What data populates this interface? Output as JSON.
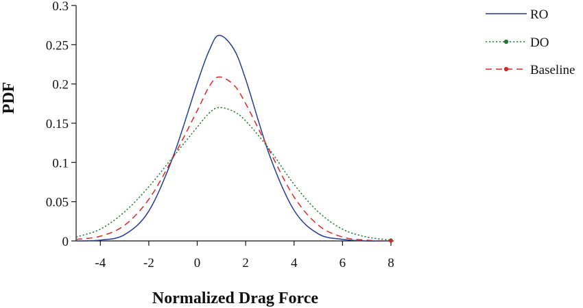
{
  "chart_data": {
    "type": "line",
    "xlabel": "Normalized Drag Force",
    "ylabel": "PDF",
    "xlim": [
      -5,
      8
    ],
    "ylim": [
      0,
      0.3
    ],
    "xticks": [
      -4,
      -2,
      0,
      2,
      4,
      6,
      8
    ],
    "xtick_labels": [
      "-4",
      "-2",
      "0",
      "2",
      "4",
      "6",
      "8"
    ],
    "yticks": [
      0,
      0.05,
      0.1,
      0.15,
      0.2,
      0.25,
      0.3
    ],
    "ytick_labels": [
      "0",
      "0.05",
      "0.1",
      "0.15",
      "0.2",
      "0.25",
      "0.3"
    ],
    "grid": false,
    "legend_position": "top-right outside",
    "series": [
      {
        "name": "RO",
        "color": "#1f3a93",
        "style": "solid",
        "x": [
          -5,
          -4,
          -3,
          -2,
          -1,
          0,
          0.5,
          0.9,
          1.5,
          2,
          3,
          4,
          5,
          6,
          7,
          8
        ],
        "y": [
          0.0,
          0.001,
          0.008,
          0.038,
          0.107,
          0.201,
          0.243,
          0.262,
          0.245,
          0.206,
          0.108,
          0.039,
          0.009,
          0.002,
          0.0,
          0.0
        ]
      },
      {
        "name": "DO",
        "color": "#1e7a32",
        "style": "dotted",
        "x": [
          -5,
          -4,
          -3,
          -2,
          -1,
          0,
          0.5,
          0.9,
          1.5,
          2,
          3,
          4,
          5,
          6,
          7,
          8
        ],
        "y": [
          0.005,
          0.015,
          0.037,
          0.069,
          0.107,
          0.145,
          0.163,
          0.17,
          0.165,
          0.153,
          0.116,
          0.072,
          0.037,
          0.015,
          0.005,
          0.001
        ]
      },
      {
        "name": "Baseline",
        "color": "#d62728",
        "style": "dashed",
        "x": [
          -5,
          -4,
          -3,
          -2,
          -1,
          0,
          0.5,
          0.9,
          1.5,
          2,
          3,
          4,
          5,
          6,
          7,
          8
        ],
        "y": [
          0.002,
          0.006,
          0.02,
          0.053,
          0.106,
          0.166,
          0.197,
          0.209,
          0.199,
          0.175,
          0.114,
          0.056,
          0.02,
          0.005,
          0.001,
          0.0
        ]
      }
    ]
  }
}
